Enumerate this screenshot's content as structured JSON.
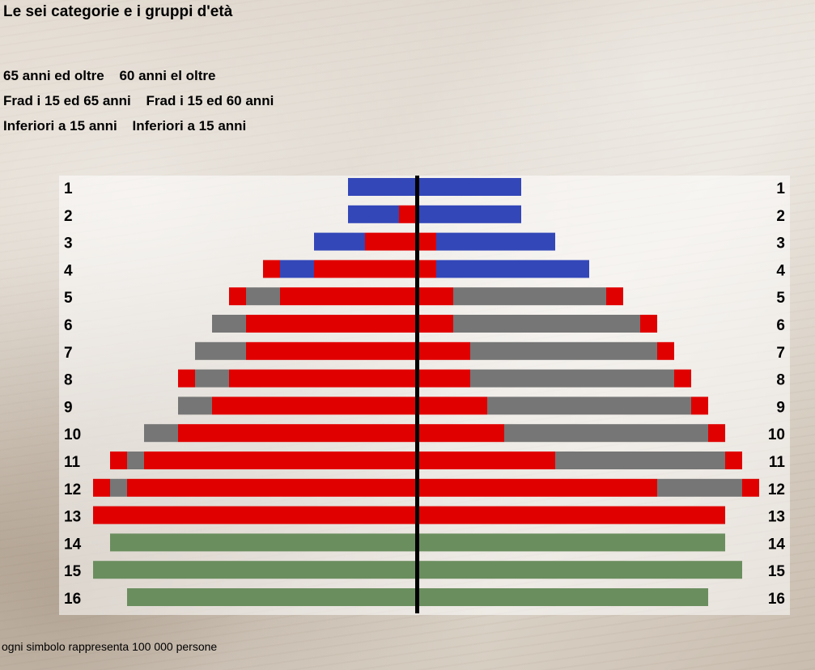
{
  "title": "Le sei categorie e i gruppi d'età",
  "legend": {
    "row1": [
      "65 anni ed oltre",
      "60 anni el oltre"
    ],
    "row2": [
      "Frad i 15 ed 65 anni",
      "Frad i 15 ed 60 anni"
    ],
    "row3": [
      "Inferiori a 15 anni",
      "Inferiori a 15 anni"
    ]
  },
  "footnote": "ogni simbolo rappresenta 100 000 persone",
  "colors": {
    "blue": "#3347b8",
    "red": "#e00000",
    "gray": "#767676",
    "green": "#6b8e5f",
    "axis": "#000000"
  },
  "chart_data": {
    "type": "bar",
    "layout": "population-pyramid",
    "unit": "100 000 persone per simbolo",
    "categories": [
      "1",
      "2",
      "3",
      "4",
      "5",
      "6",
      "7",
      "8",
      "9",
      "10",
      "11",
      "12",
      "13",
      "14",
      "15",
      "16"
    ],
    "left": [
      [
        [
          "blue",
          4
        ]
      ],
      [
        [
          "red",
          1
        ],
        [
          "blue",
          3
        ]
      ],
      [
        [
          "red",
          3
        ],
        [
          "blue",
          3
        ]
      ],
      [
        [
          "red",
          6
        ],
        [
          "blue",
          2
        ],
        [
          "red",
          1
        ]
      ],
      [
        [
          "red",
          8
        ],
        [
          "gray",
          2
        ],
        [
          "red",
          1
        ]
      ],
      [
        [
          "red",
          10
        ],
        [
          "gray",
          2
        ]
      ],
      [
        [
          "red",
          10
        ],
        [
          "gray",
          3
        ]
      ],
      [
        [
          "red",
          11
        ],
        [
          "gray",
          2
        ],
        [
          "red",
          1
        ]
      ],
      [
        [
          "red",
          12
        ],
        [
          "gray",
          2
        ]
      ],
      [
        [
          "red",
          14
        ],
        [
          "gray",
          2
        ]
      ],
      [
        [
          "red",
          16
        ],
        [
          "gray",
          1
        ],
        [
          "red",
          1
        ]
      ],
      [
        [
          "red",
          17
        ],
        [
          "gray",
          1
        ],
        [
          "red",
          1
        ]
      ],
      [
        [
          "red",
          19
        ]
      ],
      [
        [
          "green",
          18
        ]
      ],
      [
        [
          "green",
          19
        ]
      ],
      [
        [
          "green",
          17
        ]
      ]
    ],
    "right": [
      [
        [
          "blue",
          6
        ]
      ],
      [
        [
          "blue",
          6
        ]
      ],
      [
        [
          "red",
          1
        ],
        [
          "blue",
          7
        ]
      ],
      [
        [
          "red",
          1
        ],
        [
          "blue",
          9
        ]
      ],
      [
        [
          "red",
          2
        ],
        [
          "gray",
          9
        ],
        [
          "red",
          1
        ]
      ],
      [
        [
          "red",
          2
        ],
        [
          "gray",
          11
        ],
        [
          "red",
          1
        ]
      ],
      [
        [
          "red",
          3
        ],
        [
          "gray",
          11
        ],
        [
          "red",
          1
        ]
      ],
      [
        [
          "red",
          3
        ],
        [
          "gray",
          12
        ],
        [
          "red",
          1
        ]
      ],
      [
        [
          "red",
          4
        ],
        [
          "gray",
          12
        ],
        [
          "red",
          1
        ]
      ],
      [
        [
          "red",
          5
        ],
        [
          "gray",
          12
        ],
        [
          "red",
          1
        ]
      ],
      [
        [
          "red",
          8
        ],
        [
          "gray",
          10
        ],
        [
          "red",
          1
        ]
      ],
      [
        [
          "red",
          14
        ],
        [
          "gray",
          5
        ],
        [
          "red",
          1
        ]
      ],
      [
        [
          "red",
          18
        ]
      ],
      [
        [
          "green",
          18
        ]
      ],
      [
        [
          "green",
          19
        ]
      ],
      [
        [
          "green",
          17
        ]
      ]
    ]
  }
}
